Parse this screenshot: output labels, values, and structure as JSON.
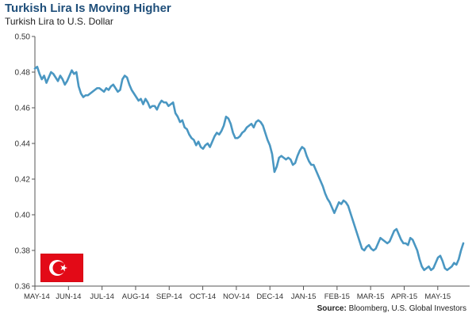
{
  "header": {
    "title": "Turkish Lira Is Moving Higher",
    "subtitle": "Turkish Lira to U.S. Dollar"
  },
  "footer": {
    "source_label": "Source:",
    "source_text": "Bloomberg, U.S. Global Investors"
  },
  "flag": {
    "icon": "turkish-flag-icon",
    "colors": {
      "field": "#e30a17",
      "symbol": "#ffffff"
    }
  },
  "colors": {
    "line": "#4a97c2",
    "title": "#1f4f7a",
    "axis": "#555555",
    "grid": "#e3e3e3"
  },
  "chart_data": {
    "type": "line",
    "title": "Turkish Lira Is Moving Higher",
    "subtitle": "Turkish Lira to U.S. Dollar",
    "xlabel": "",
    "ylabel": "",
    "ylim": [
      0.36,
      0.5
    ],
    "yticks": [
      0.36,
      0.38,
      0.4,
      0.42,
      0.44,
      0.46,
      0.48,
      0.5
    ],
    "ytick_labels": [
      "0.36",
      "0.38",
      "0.40",
      "0.42",
      "0.44",
      "0.46",
      "0.48",
      "0.50"
    ],
    "xtick_labels": [
      "MAY-14",
      "JUN-14",
      "JUL-14",
      "AUG-14",
      "SEP-14",
      "OCT-14",
      "NOV-14",
      "DEC-14",
      "JAN-15",
      "FEB-15",
      "MAR-15",
      "APR-15",
      "MAY-15"
    ],
    "grid": false,
    "legend": "none",
    "series": [
      {
        "values": [
          0.482,
          0.483,
          0.479,
          0.476,
          0.478,
          0.474,
          0.477,
          0.48,
          0.479,
          0.477,
          0.475,
          0.478,
          0.476,
          0.473,
          0.475,
          0.478,
          0.481,
          0.479,
          0.48,
          0.472,
          0.468,
          0.466,
          0.467,
          0.467,
          0.468,
          0.469,
          0.47,
          0.471,
          0.471,
          0.47,
          0.469,
          0.471,
          0.47,
          0.472,
          0.473,
          0.471,
          0.469,
          0.47,
          0.476,
          0.478,
          0.477,
          0.473,
          0.47,
          0.468,
          0.466,
          0.464,
          0.465,
          0.462,
          0.465,
          0.463,
          0.46,
          0.461,
          0.461,
          0.459,
          0.462,
          0.464,
          0.463,
          0.463,
          0.461,
          0.462,
          0.463,
          0.457,
          0.455,
          0.452,
          0.453,
          0.449,
          0.448,
          0.445,
          0.443,
          0.442,
          0.439,
          0.441,
          0.438,
          0.437,
          0.439,
          0.44,
          0.438,
          0.441,
          0.444,
          0.446,
          0.445,
          0.447,
          0.45,
          0.455,
          0.454,
          0.451,
          0.446,
          0.443,
          0.443,
          0.444,
          0.446,
          0.447,
          0.449,
          0.45,
          0.451,
          0.449,
          0.452,
          0.453,
          0.452,
          0.45,
          0.446,
          0.442,
          0.439,
          0.434,
          0.424,
          0.427,
          0.432,
          0.433,
          0.432,
          0.431,
          0.432,
          0.431,
          0.428,
          0.429,
          0.433,
          0.436,
          0.438,
          0.437,
          0.433,
          0.43,
          0.428,
          0.428,
          0.425,
          0.422,
          0.419,
          0.416,
          0.412,
          0.409,
          0.407,
          0.404,
          0.401,
          0.404,
          0.407,
          0.406,
          0.408,
          0.407,
          0.405,
          0.401,
          0.397,
          0.393,
          0.389,
          0.385,
          0.381,
          0.38,
          0.382,
          0.383,
          0.381,
          0.38,
          0.381,
          0.384,
          0.387,
          0.386,
          0.385,
          0.384,
          0.385,
          0.388,
          0.391,
          0.392,
          0.389,
          0.386,
          0.384,
          0.384,
          0.383,
          0.387,
          0.386,
          0.383,
          0.38,
          0.375,
          0.371,
          0.369,
          0.37,
          0.371,
          0.369,
          0.37,
          0.373,
          0.376,
          0.377,
          0.374,
          0.37,
          0.369,
          0.37,
          0.371,
          0.373,
          0.372,
          0.375,
          0.38,
          0.384
        ]
      }
    ]
  }
}
